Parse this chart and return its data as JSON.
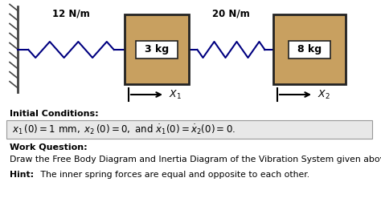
{
  "bg_color": "#ffffff",
  "spring1_label": "12 N/m",
  "spring2_label": "20 N/m",
  "box1_label": "3 kg",
  "box2_label": "8 kg",
  "box_color": "#c8a060",
  "box_edge_color": "#222222",
  "spring_color": "#000080",
  "wall_color": "#444444",
  "arrow_color": "#000000",
  "text_color": "#000000",
  "ic_bg_color": "#e8e8e8",
  "ic_border_color": "#999999"
}
